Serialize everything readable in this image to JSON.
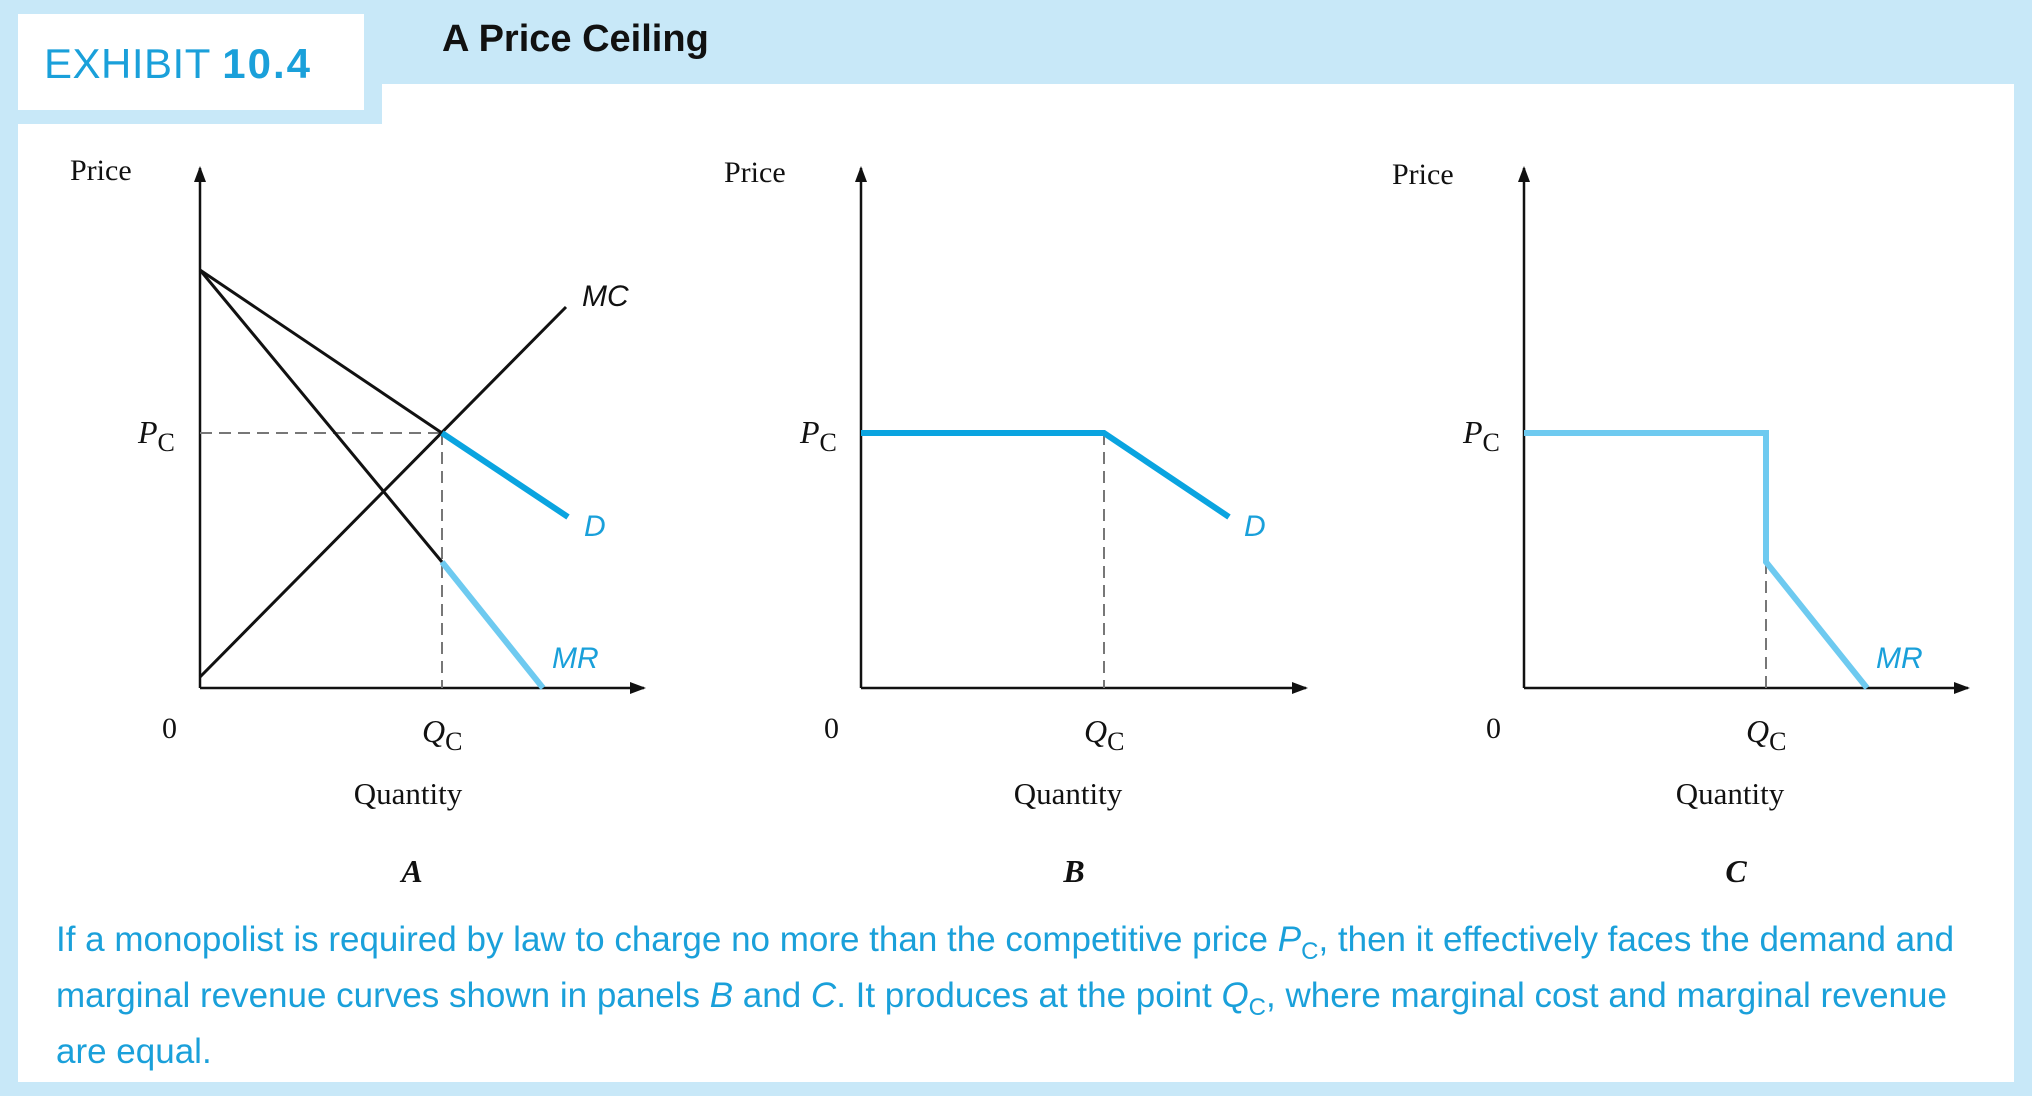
{
  "exhibit": {
    "label": "EXHIBIT",
    "number": "10.4"
  },
  "title": "A Price Ceiling",
  "panels": [
    {
      "id": "A",
      "price_label": "Price",
      "pc_main": "P",
      "pc_sub": "C",
      "origin": "0",
      "qc_main": "Q",
      "qc_sub": "C",
      "xlabel": "Quantity",
      "mc": "MC",
      "d": "D",
      "mr": "MR"
    },
    {
      "id": "B",
      "price_label": "Price",
      "pc_main": "P",
      "pc_sub": "C",
      "origin": "0",
      "qc_main": "Q",
      "qc_sub": "C",
      "xlabel": "Quantity",
      "d": "D"
    },
    {
      "id": "C",
      "price_label": "Price",
      "pc_main": "P",
      "pc_sub": "C",
      "origin": "0",
      "qc_main": "Q",
      "qc_sub": "C",
      "xlabel": "Quantity",
      "mr": "MR"
    }
  ],
  "caption": {
    "part1": "If a monopolist is required by law to charge no more than the competitive price ",
    "pc_main": "P",
    "pc_sub": "C",
    "part2": ", then it effectively faces the demand and marginal revenue curves shown in panels ",
    "b": "B",
    "and": " and ",
    "c": "C",
    "part3": ". It produces at the point ",
    "qc_main": "Q",
    "qc_sub": "C",
    "part4": ", where marginal cost and marginal revenue are equal."
  },
  "colors": {
    "d": "#0aa4e0",
    "mr": "#6ecaf0",
    "axis": "#111111",
    "accent": "#1aa0da"
  }
}
